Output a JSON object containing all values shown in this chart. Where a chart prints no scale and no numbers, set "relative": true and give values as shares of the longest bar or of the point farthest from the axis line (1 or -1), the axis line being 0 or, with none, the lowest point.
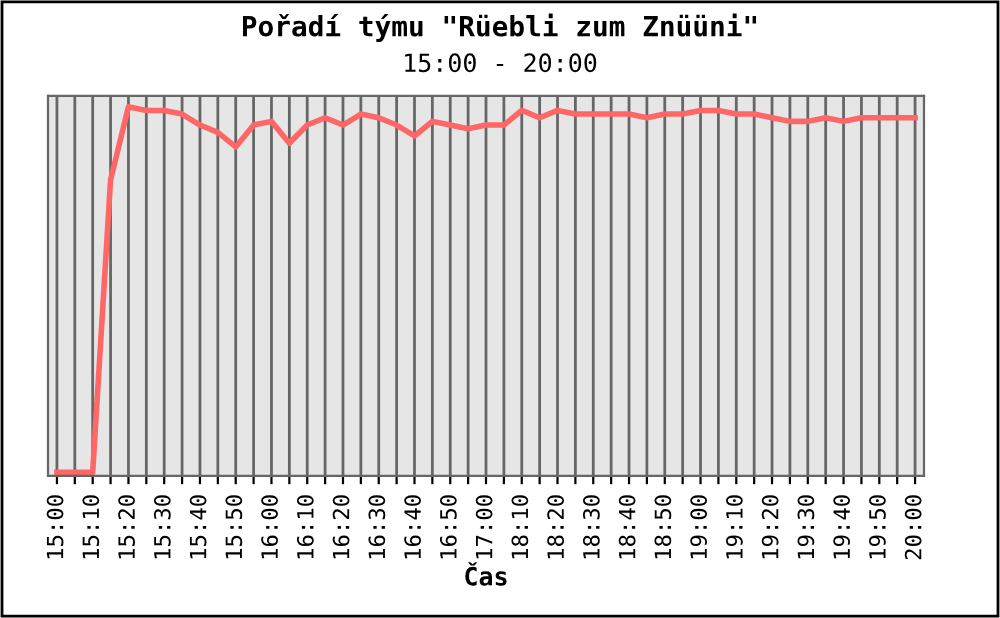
{
  "chart_data": {
    "type": "line",
    "title": "Pořadí týmu \"Rüebli zum Znüüni\"",
    "subtitle": "15:00 - 20:00",
    "xlabel": "Čas",
    "categories": [
      "15:00",
      null,
      "15:10",
      null,
      "15:20",
      null,
      "15:30",
      null,
      "15:40",
      null,
      "15:50",
      null,
      "16:00",
      null,
      "16:10",
      null,
      "16:20",
      null,
      "16:30",
      null,
      "16:40",
      null,
      "16:50",
      null,
      "17:00",
      null,
      "18:10",
      null,
      "18:20",
      null,
      "18:30",
      null,
      "18:40",
      null,
      "18:50",
      null,
      "19:00",
      null,
      "19:10",
      null,
      "19:20",
      null,
      "19:30",
      null,
      "19:40",
      null,
      "19:50",
      null,
      "20:00"
    ],
    "series": [
      {
        "color": "#ff6666",
        "values": [
          0,
          0,
          0,
          0.8,
          1.0,
          0.99,
          0.99,
          0.98,
          0.95,
          0.93,
          0.89,
          0.95,
          0.96,
          0.9,
          0.95,
          0.97,
          0.95,
          0.98,
          0.97,
          0.95,
          0.92,
          0.96,
          0.95,
          0.94,
          0.95,
          0.95,
          0.99,
          0.97,
          0.99,
          0.98,
          0.98,
          0.98,
          0.98,
          0.97,
          0.98,
          0.98,
          0.99,
          0.99,
          0.98,
          0.98,
          0.97,
          0.96,
          0.96,
          0.97,
          0.96,
          0.97,
          0.97,
          0.97,
          0.97
        ]
      }
    ],
    "relative": true,
    "grid": "x",
    "marker": "none",
    "line_style": "solid"
  }
}
